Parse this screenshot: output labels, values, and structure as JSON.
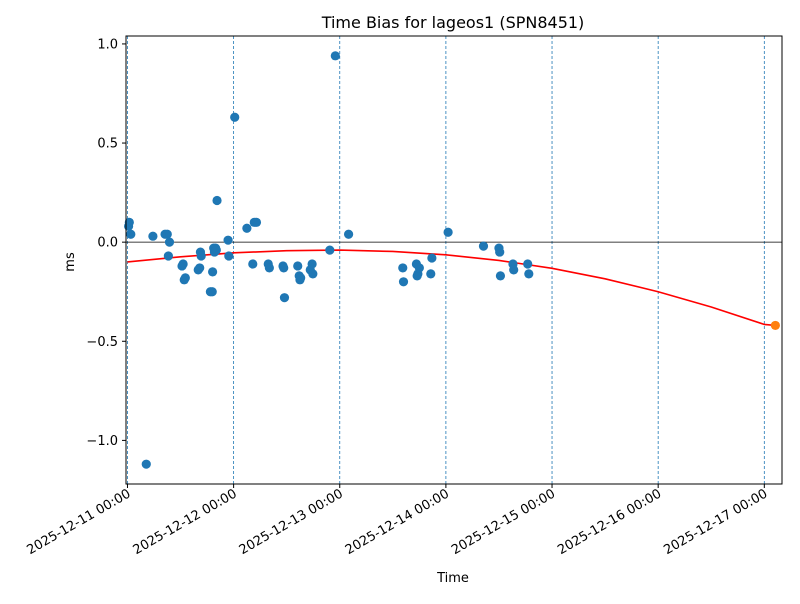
{
  "chart_data": {
    "type": "scatter",
    "title": "Time Bias for lageos1 (SPN8451)",
    "xlabel": "Time",
    "ylabel": "ms",
    "x_ticks": [
      "2025-12-11 00:00",
      "2025-12-12 00:00",
      "2025-12-13 00:00",
      "2025-12-14 00:00",
      "2025-12-15 00:00",
      "2025-12-16 00:00",
      "2025-12-17 00:00"
    ],
    "y_ticks": [
      "−1.0",
      "−0.5",
      "0.0",
      "0.5",
      "1.0"
    ],
    "xlim": [
      "2025-12-10 23:40",
      "2025-12-17 04:00"
    ],
    "ylim": [
      -1.22,
      1.04
    ],
    "grid": "vertical dashed lines at each day",
    "zero_line": 0,
    "colors": {
      "points": "#1f77b4",
      "fit": "#ff0000",
      "prediction": "#ff7f0e",
      "grid": "#1f77b4"
    },
    "series": [
      {
        "marker": "circle",
        "points": [
          {
            "x": "2025-12-11 00:15",
            "y": 0.08
          },
          {
            "x": "2025-12-11 00:25",
            "y": 0.1
          },
          {
            "x": "2025-12-11 00:45",
            "y": 0.04
          },
          {
            "x": "2025-12-11 04:15",
            "y": -1.12
          },
          {
            "x": "2025-12-11 05:45",
            "y": 0.03
          },
          {
            "x": "2025-12-11 08:30",
            "y": 0.04
          },
          {
            "x": "2025-12-11 09:00",
            "y": 0.04
          },
          {
            "x": "2025-12-11 09:15",
            "y": -0.07
          },
          {
            "x": "2025-12-11 09:30",
            "y": 0.0
          },
          {
            "x": "2025-12-11 12:20",
            "y": -0.12
          },
          {
            "x": "2025-12-11 12:35",
            "y": -0.11
          },
          {
            "x": "2025-12-11 12:50",
            "y": -0.19
          },
          {
            "x": "2025-12-11 13:05",
            "y": -0.18
          },
          {
            "x": "2025-12-11 16:00",
            "y": -0.14
          },
          {
            "x": "2025-12-11 16:20",
            "y": -0.13
          },
          {
            "x": "2025-12-11 16:30",
            "y": -0.05
          },
          {
            "x": "2025-12-11 16:40",
            "y": -0.07
          },
          {
            "x": "2025-12-11 18:45",
            "y": -0.25
          },
          {
            "x": "2025-12-11 19:10",
            "y": -0.25
          },
          {
            "x": "2025-12-11 19:15",
            "y": -0.15
          },
          {
            "x": "2025-12-11 19:30",
            "y": -0.03
          },
          {
            "x": "2025-12-11 19:40",
            "y": -0.05
          },
          {
            "x": "2025-12-11 19:55",
            "y": -0.03
          },
          {
            "x": "2025-12-11 20:05",
            "y": -0.04
          },
          {
            "x": "2025-12-11 20:15",
            "y": 0.21
          },
          {
            "x": "2025-12-11 22:45",
            "y": 0.01
          },
          {
            "x": "2025-12-11 22:55",
            "y": -0.07
          },
          {
            "x": "2025-12-12 00:15",
            "y": 0.63
          },
          {
            "x": "2025-12-12 03:00",
            "y": 0.07
          },
          {
            "x": "2025-12-12 04:20",
            "y": -0.11
          },
          {
            "x": "2025-12-12 04:40",
            "y": 0.1
          },
          {
            "x": "2025-12-12 05:10",
            "y": 0.1
          },
          {
            "x": "2025-12-12 07:50",
            "y": -0.11
          },
          {
            "x": "2025-12-12 08:05",
            "y": -0.13
          },
          {
            "x": "2025-12-12 11:10",
            "y": -0.12
          },
          {
            "x": "2025-12-12 11:20",
            "y": -0.13
          },
          {
            "x": "2025-12-12 11:30",
            "y": -0.28
          },
          {
            "x": "2025-12-12 14:30",
            "y": -0.12
          },
          {
            "x": "2025-12-12 14:50",
            "y": -0.17
          },
          {
            "x": "2025-12-12 15:00",
            "y": -0.19
          },
          {
            "x": "2025-12-12 15:10",
            "y": -0.18
          },
          {
            "x": "2025-12-12 17:20",
            "y": -0.14
          },
          {
            "x": "2025-12-12 17:45",
            "y": -0.11
          },
          {
            "x": "2025-12-12 17:55",
            "y": -0.16
          },
          {
            "x": "2025-12-12 21:45",
            "y": -0.04
          },
          {
            "x": "2025-12-12 23:00",
            "y": 0.94
          },
          {
            "x": "2025-12-13 02:00",
            "y": 0.04
          },
          {
            "x": "2025-12-13 14:15",
            "y": -0.13
          },
          {
            "x": "2025-12-13 14:25",
            "y": -0.2
          },
          {
            "x": "2025-12-13 17:20",
            "y": -0.11
          },
          {
            "x": "2025-12-13 17:30",
            "y": -0.17
          },
          {
            "x": "2025-12-13 17:40",
            "y": -0.16
          },
          {
            "x": "2025-12-13 18:00",
            "y": -0.13
          },
          {
            "x": "2025-12-13 20:35",
            "y": -0.16
          },
          {
            "x": "2025-12-13 20:50",
            "y": -0.08
          },
          {
            "x": "2025-12-14 00:30",
            "y": 0.05
          },
          {
            "x": "2025-12-14 08:30",
            "y": -0.02
          },
          {
            "x": "2025-12-14 12:00",
            "y": -0.03
          },
          {
            "x": "2025-12-14 12:10",
            "y": -0.05
          },
          {
            "x": "2025-12-14 12:20",
            "y": -0.17
          },
          {
            "x": "2025-12-14 15:10",
            "y": -0.11
          },
          {
            "x": "2025-12-14 15:20",
            "y": -0.14
          },
          {
            "x": "2025-12-14 18:30",
            "y": -0.11
          },
          {
            "x": "2025-12-14 18:45",
            "y": -0.16
          }
        ]
      },
      {
        "line": "quadratic fit",
        "x": [
          "2025-12-11 00:00",
          "2025-12-11 12:00",
          "2025-12-12 00:00",
          "2025-12-12 12:00",
          "2025-12-13 00:00",
          "2025-12-13 12:00",
          "2025-12-14 00:00",
          "2025-12-14 12:00",
          "2025-12-15 00:00",
          "2025-12-15 12:00",
          "2025-12-16 00:00",
          "2025-12-16 12:00",
          "2025-12-17 00:00",
          "2025-12-17 02:30"
        ],
        "y": [
          -0.1,
          -0.074,
          -0.054,
          -0.043,
          -0.04,
          -0.047,
          -0.064,
          -0.092,
          -0.132,
          -0.185,
          -0.25,
          -0.327,
          -0.415,
          -0.42
        ]
      },
      {
        "marker": "circle",
        "points": [
          {
            "x": "2025-12-17 02:30",
            "y": -0.42
          }
        ]
      }
    ]
  }
}
